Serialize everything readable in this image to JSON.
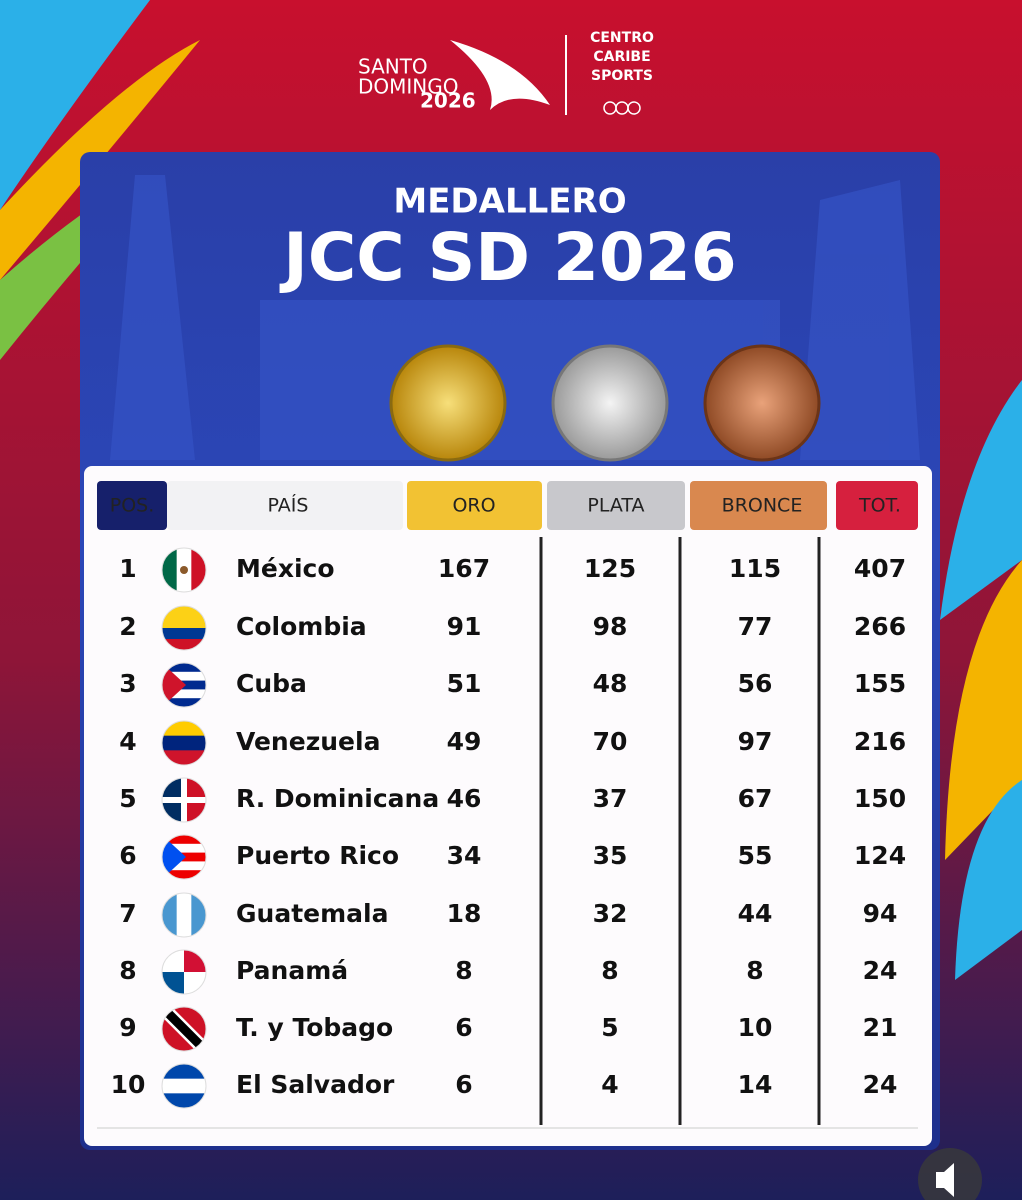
{
  "logo": {
    "line1": "SANTO",
    "line2": "DOMINGO",
    "year": "2026",
    "partner": [
      "CENTRO",
      "CARIBE",
      "SPORTS"
    ]
  },
  "header": {
    "subtitle": "MEDALLERO",
    "title": "JCC SD 2026"
  },
  "table": {
    "columns": [
      "POS.",
      "PAÍS",
      "ORO",
      "PLATA",
      "BRONCE",
      "TOT."
    ],
    "rows": [
      [
        1,
        "México",
        167,
        125,
        115,
        407
      ],
      [
        2,
        "Colombia",
        91,
        98,
        77,
        266
      ],
      [
        3,
        "Cuba",
        51,
        48,
        56,
        155
      ],
      [
        4,
        "Venezuela",
        49,
        70,
        97,
        216
      ],
      [
        5,
        "R. Dominicana",
        46,
        37,
        67,
        150
      ],
      [
        6,
        "Puerto Rico",
        34,
        35,
        55,
        124
      ],
      [
        7,
        "Guatemala",
        18,
        32,
        44,
        94
      ],
      [
        8,
        "Panamá",
        8,
        8,
        8,
        24
      ],
      [
        9,
        "T. y Tobago",
        6,
        5,
        10,
        21
      ],
      [
        10,
        "El Salvador",
        6,
        4,
        14,
        24
      ]
    ]
  }
}
